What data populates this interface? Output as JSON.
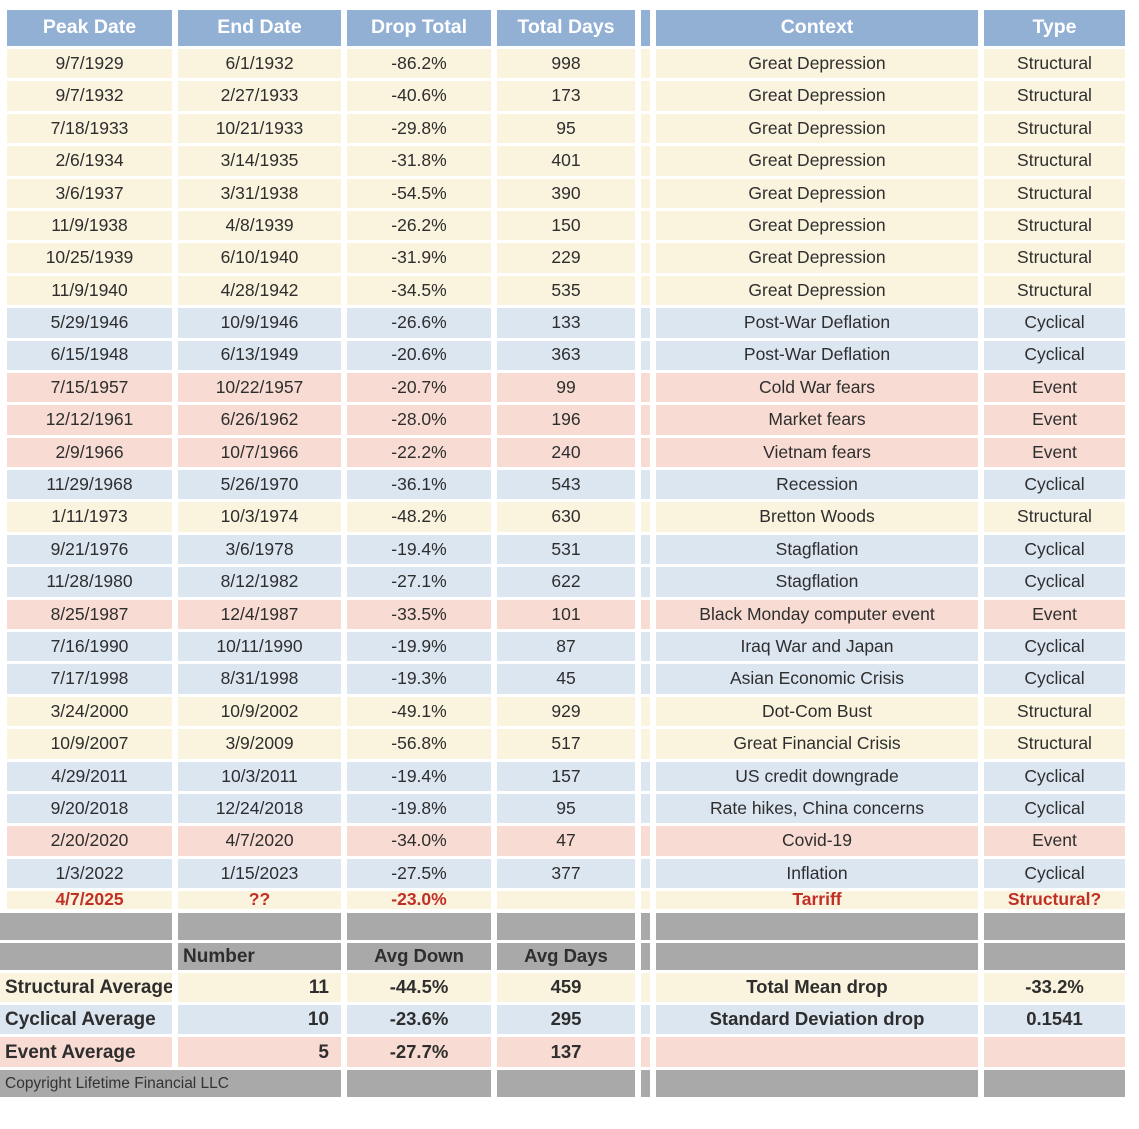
{
  "colors": {
    "header_bg": "#92B0D4",
    "structural_bg": "#FAF3DD",
    "cyclical_bg": "#DCE6F1",
    "event_bg": "#F8DCD3",
    "gray_bg": "#A9A9A9",
    "alert_red": "#C13026",
    "body_text": "#2E2E2E",
    "header_text": "#FFFFFF"
  },
  "chart_data": {
    "type": "table",
    "columns": [
      "Peak Date",
      "End Date",
      "Drop Total",
      "Total Days",
      "Context",
      "Type"
    ],
    "rows": [
      {
        "peak_date": "9/7/1929",
        "end_date": "6/1/1932",
        "drop_total": "-86.2%",
        "total_days": "998",
        "context": "Great Depression",
        "type": "Structural",
        "tone": "structural",
        "alert": false
      },
      {
        "peak_date": "9/7/1932",
        "end_date": "2/27/1933",
        "drop_total": "-40.6%",
        "total_days": "173",
        "context": "Great Depression",
        "type": "Structural",
        "tone": "structural",
        "alert": false
      },
      {
        "peak_date": "7/18/1933",
        "end_date": "10/21/1933",
        "drop_total": "-29.8%",
        "total_days": "95",
        "context": "Great Depression",
        "type": "Structural",
        "tone": "structural",
        "alert": false
      },
      {
        "peak_date": "2/6/1934",
        "end_date": "3/14/1935",
        "drop_total": "-31.8%",
        "total_days": "401",
        "context": "Great Depression",
        "type": "Structural",
        "tone": "structural",
        "alert": false
      },
      {
        "peak_date": "3/6/1937",
        "end_date": "3/31/1938",
        "drop_total": "-54.5%",
        "total_days": "390",
        "context": "Great Depression",
        "type": "Structural",
        "tone": "structural",
        "alert": false
      },
      {
        "peak_date": "11/9/1938",
        "end_date": "4/8/1939",
        "drop_total": "-26.2%",
        "total_days": "150",
        "context": "Great Depression",
        "type": "Structural",
        "tone": "structural",
        "alert": false
      },
      {
        "peak_date": "10/25/1939",
        "end_date": "6/10/1940",
        "drop_total": "-31.9%",
        "total_days": "229",
        "context": "Great Depression",
        "type": "Structural",
        "tone": "structural",
        "alert": false
      },
      {
        "peak_date": "11/9/1940",
        "end_date": "4/28/1942",
        "drop_total": "-34.5%",
        "total_days": "535",
        "context": "Great Depression",
        "type": "Structural",
        "tone": "structural",
        "alert": false
      },
      {
        "peak_date": "5/29/1946",
        "end_date": "10/9/1946",
        "drop_total": "-26.6%",
        "total_days": "133",
        "context": "Post-War Deflation",
        "type": "Cyclical",
        "tone": "cyclical",
        "alert": false
      },
      {
        "peak_date": "6/15/1948",
        "end_date": "6/13/1949",
        "drop_total": "-20.6%",
        "total_days": "363",
        "context": "Post-War Deflation",
        "type": "Cyclical",
        "tone": "cyclical",
        "alert": false
      },
      {
        "peak_date": "7/15/1957",
        "end_date": "10/22/1957",
        "drop_total": "-20.7%",
        "total_days": "99",
        "context": "Cold War fears",
        "type": "Event",
        "tone": "event",
        "alert": false
      },
      {
        "peak_date": "12/12/1961",
        "end_date": "6/26/1962",
        "drop_total": "-28.0%",
        "total_days": "196",
        "context": "Market fears",
        "type": "Event",
        "tone": "event",
        "alert": false
      },
      {
        "peak_date": "2/9/1966",
        "end_date": "10/7/1966",
        "drop_total": "-22.2%",
        "total_days": "240",
        "context": "Vietnam fears",
        "type": "Event",
        "tone": "event",
        "alert": false
      },
      {
        "peak_date": "11/29/1968",
        "end_date": "5/26/1970",
        "drop_total": "-36.1%",
        "total_days": "543",
        "context": "Recession",
        "type": "Cyclical",
        "tone": "cyclical",
        "alert": false
      },
      {
        "peak_date": "1/11/1973",
        "end_date": "10/3/1974",
        "drop_total": "-48.2%",
        "total_days": "630",
        "context": "Bretton Woods",
        "type": "Structural",
        "tone": "structural",
        "alert": false
      },
      {
        "peak_date": "9/21/1976",
        "end_date": "3/6/1978",
        "drop_total": "-19.4%",
        "total_days": "531",
        "context": "Stagflation",
        "type": "Cyclical",
        "tone": "cyclical",
        "alert": false
      },
      {
        "peak_date": "11/28/1980",
        "end_date": "8/12/1982",
        "drop_total": "-27.1%",
        "total_days": "622",
        "context": "Stagflation",
        "type": "Cyclical",
        "tone": "cyclical",
        "alert": false
      },
      {
        "peak_date": "8/25/1987",
        "end_date": "12/4/1987",
        "drop_total": "-33.5%",
        "total_days": "101",
        "context": "Black Monday computer event",
        "type": "Event",
        "tone": "event",
        "alert": false
      },
      {
        "peak_date": "7/16/1990",
        "end_date": "10/11/1990",
        "drop_total": "-19.9%",
        "total_days": "87",
        "context": "Iraq War and Japan",
        "type": "Cyclical",
        "tone": "cyclical",
        "alert": false
      },
      {
        "peak_date": "7/17/1998",
        "end_date": "8/31/1998",
        "drop_total": "-19.3%",
        "total_days": "45",
        "context": "Asian Economic Crisis",
        "type": "Cyclical",
        "tone": "cyclical",
        "alert": false
      },
      {
        "peak_date": "3/24/2000",
        "end_date": "10/9/2002",
        "drop_total": "-49.1%",
        "total_days": "929",
        "context": "Dot-Com Bust",
        "type": "Structural",
        "tone": "structural",
        "alert": false
      },
      {
        "peak_date": "10/9/2007",
        "end_date": "3/9/2009",
        "drop_total": "-56.8%",
        "total_days": "517",
        "context": "Great Financial Crisis",
        "type": "Structural",
        "tone": "structural",
        "alert": false
      },
      {
        "peak_date": "4/29/2011",
        "end_date": "10/3/2011",
        "drop_total": "-19.4%",
        "total_days": "157",
        "context": "US credit downgrade",
        "type": "Cyclical",
        "tone": "cyclical",
        "alert": false
      },
      {
        "peak_date": "9/20/2018",
        "end_date": "12/24/2018",
        "drop_total": "-19.8%",
        "total_days": "95",
        "context": "Rate hikes, China concerns",
        "type": "Cyclical",
        "tone": "cyclical",
        "alert": false
      },
      {
        "peak_date": "2/20/2020",
        "end_date": "4/7/2020",
        "drop_total": "-34.0%",
        "total_days": "47",
        "context": "Covid-19",
        "type": "Event",
        "tone": "event",
        "alert": false
      },
      {
        "peak_date": "1/3/2022",
        "end_date": "1/15/2023",
        "drop_total": "-27.5%",
        "total_days": "377",
        "context": "Inflation",
        "type": "Cyclical",
        "tone": "cyclical",
        "alert": false
      },
      {
        "peak_date": "4/7/2025",
        "end_date": "??",
        "drop_total": "-23.0%",
        "total_days": "",
        "context": "Tarriff",
        "type": "Structural?",
        "tone": "structural",
        "alert": true
      }
    ],
    "summary": {
      "column_headers": {
        "number": "Number",
        "avg_down": "Avg Down",
        "avg_days": "Avg Days"
      },
      "rows": [
        {
          "label": "Structural Average",
          "number": "11",
          "avg_down": "-44.5%",
          "avg_days": "459",
          "tone": "structural",
          "stat_label": "Total Mean drop",
          "stat_value": "-33.2%"
        },
        {
          "label": "Cyclical Average",
          "number": "10",
          "avg_down": "-23.6%",
          "avg_days": "295",
          "tone": "cyclical",
          "stat_label": "Standard Deviation drop",
          "stat_value": "0.1541"
        },
        {
          "label": "Event Average",
          "number": "5",
          "avg_down": "-27.7%",
          "avg_days": "137",
          "tone": "event",
          "stat_label": "",
          "stat_value": ""
        }
      ],
      "copyright": "Copyright Lifetime Financial LLC"
    }
  }
}
